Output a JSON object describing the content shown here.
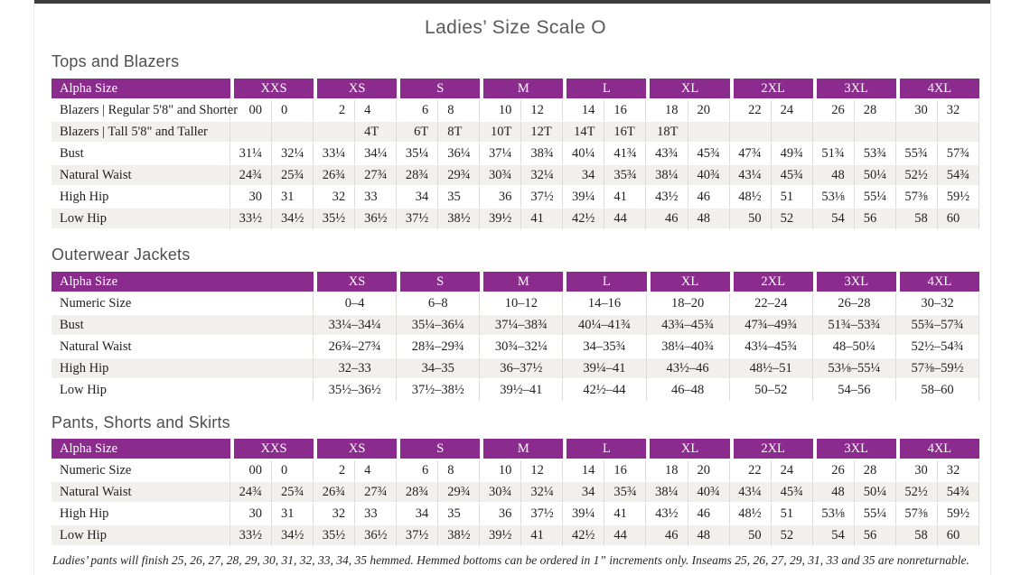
{
  "page": {
    "title": "Ladies’ Size Scale O",
    "footnote": "Ladies’ pants will finish 25, 26, 27, 28, 29, 30, 31, 32, 33, 34, 35 hemmed. Hemmed bottoms can be ordered in 1” increments only. Inseams 25, 26, 27, 29, 31, 33 and 35 are nonreturnable."
  },
  "colors": {
    "header_bg": "#8C2B8E",
    "stripe_bg": "#F2F0EC",
    "top_bar": "#3D3D3D"
  },
  "tables": [
    {
      "id": "tops-and-blazers",
      "section_title": "Tops and Blazers",
      "label_header": "Alpha Size",
      "split_columns": true,
      "sizes": [
        "XXS",
        "XS",
        "S",
        "M",
        "L",
        "XL",
        "2XL",
        "3XL",
        "4XL"
      ],
      "rows": [
        {
          "label": "Blazers | Regular 5'8\" and Shorter",
          "values": [
            [
              "00",
              "0"
            ],
            [
              "2",
              "4"
            ],
            [
              "6",
              "8"
            ],
            [
              "10",
              "12"
            ],
            [
              "14",
              "16"
            ],
            [
              "18",
              "20"
            ],
            [
              "22",
              "24"
            ],
            [
              "26",
              "28"
            ],
            [
              "30",
              "32"
            ]
          ]
        },
        {
          "label": "Blazers | Tall 5'8\" and Taller",
          "values": [
            [
              "",
              ""
            ],
            [
              "",
              "4T"
            ],
            [
              "6T",
              "8T"
            ],
            [
              "10T",
              "12T"
            ],
            [
              "14T",
              "16T"
            ],
            [
              "18T",
              ""
            ],
            [
              "",
              ""
            ],
            [
              "",
              ""
            ],
            [
              "",
              ""
            ]
          ]
        },
        {
          "label": "Bust",
          "values": [
            [
              "31¼",
              "32¼"
            ],
            [
              "33¼",
              "34¼"
            ],
            [
              "35¼",
              "36¼"
            ],
            [
              "37¼",
              "38¾"
            ],
            [
              "40¼",
              "41¾"
            ],
            [
              "43¾",
              "45¾"
            ],
            [
              "47¾",
              "49¾"
            ],
            [
              "51¾",
              "53¾"
            ],
            [
              "55¾",
              "57¾"
            ]
          ]
        },
        {
          "label": "Natural Waist",
          "values": [
            [
              "24¾",
              "25¾"
            ],
            [
              "26¾",
              "27¾"
            ],
            [
              "28¾",
              "29¾"
            ],
            [
              "30¾",
              "32¼"
            ],
            [
              "34",
              "35¾"
            ],
            [
              "38¼",
              "40¾"
            ],
            [
              "43¼",
              "45¾"
            ],
            [
              "48",
              "50¼"
            ],
            [
              "52½",
              "54¾"
            ]
          ]
        },
        {
          "label": "High Hip",
          "values": [
            [
              "30",
              "31"
            ],
            [
              "32",
              "33"
            ],
            [
              "34",
              "35"
            ],
            [
              "36",
              "37½"
            ],
            [
              "39¼",
              "41"
            ],
            [
              "43½",
              "46"
            ],
            [
              "48½",
              "51"
            ],
            [
              "53⅛",
              "55¼"
            ],
            [
              "57⅜",
              "59½"
            ]
          ]
        },
        {
          "label": "Low Hip",
          "values": [
            [
              "33½",
              "34½"
            ],
            [
              "35½",
              "36½"
            ],
            [
              "37½",
              "38½"
            ],
            [
              "39½",
              "41"
            ],
            [
              "42½",
              "44"
            ],
            [
              "46",
              "48"
            ],
            [
              "50",
              "52"
            ],
            [
              "54",
              "56"
            ],
            [
              "58",
              "60"
            ]
          ]
        }
      ]
    },
    {
      "id": "outerwear-jackets",
      "section_title": "Outerwear Jackets",
      "label_header": "Alpha Size",
      "split_columns": false,
      "sizes": [
        "XS",
        "S",
        "M",
        "L",
        "XL",
        "2XL",
        "3XL",
        "4XL"
      ],
      "rows": [
        {
          "label": "Numeric Size",
          "values": [
            "0–4",
            "6–8",
            "10–12",
            "14–16",
            "18–20",
            "22–24",
            "26–28",
            "30–32"
          ]
        },
        {
          "label": "Bust",
          "values": [
            "33¼–34¼",
            "35¼–36¼",
            "37¼–38¾",
            "40¼–41¾",
            "43¾–45¾",
            "47¾–49¾",
            "51¾–53¾",
            "55¾–57¾"
          ]
        },
        {
          "label": "Natural Waist",
          "values": [
            "26¾–27¾",
            "28¾–29¾",
            "30¾–32¼",
            "34–35¾",
            "38¼–40¾",
            "43¼–45¾",
            "48–50¼",
            "52½–54¾"
          ]
        },
        {
          "label": "High Hip",
          "values": [
            "32–33",
            "34–35",
            "36–37½",
            "39¼–41",
            "43½–46",
            "48½–51",
            "53⅛–55¼",
            "57⅜–59½"
          ]
        },
        {
          "label": "Low Hip",
          "values": [
            "35½–36½",
            "37½–38½",
            "39½–41",
            "42½–44",
            "46–48",
            "50–52",
            "54–56",
            "58–60"
          ]
        }
      ]
    },
    {
      "id": "pants-shorts-skirts",
      "section_title": "Pants, Shorts and Skirts",
      "label_header": "Alpha Size",
      "split_columns": true,
      "sizes": [
        "XXS",
        "XS",
        "S",
        "M",
        "L",
        "XL",
        "2XL",
        "3XL",
        "4XL"
      ],
      "rows": [
        {
          "label": "Numeric Size",
          "values": [
            [
              "00",
              "0"
            ],
            [
              "2",
              "4"
            ],
            [
              "6",
              "8"
            ],
            [
              "10",
              "12"
            ],
            [
              "14",
              "16"
            ],
            [
              "18",
              "20"
            ],
            [
              "22",
              "24"
            ],
            [
              "26",
              "28"
            ],
            [
              "30",
              "32"
            ]
          ]
        },
        {
          "label": "Natural Waist",
          "values": [
            [
              "24¾",
              "25¾"
            ],
            [
              "26¾",
              "27¾"
            ],
            [
              "28¾",
              "29¾"
            ],
            [
              "30¾",
              "32¼"
            ],
            [
              "34",
              "35¾"
            ],
            [
              "38¼",
              "40¾"
            ],
            [
              "43¼",
              "45¾"
            ],
            [
              "48",
              "50¼"
            ],
            [
              "52½",
              "54¾"
            ]
          ]
        },
        {
          "label": "High Hip",
          "values": [
            [
              "30",
              "31"
            ],
            [
              "32",
              "33"
            ],
            [
              "34",
              "35"
            ],
            [
              "36",
              "37½"
            ],
            [
              "39¼",
              "41"
            ],
            [
              "43½",
              "46"
            ],
            [
              "48½",
              "51"
            ],
            [
              "53⅛",
              "55¼"
            ],
            [
              "57⅜",
              "59½"
            ]
          ]
        },
        {
          "label": "Low Hip",
          "values": [
            [
              "33½",
              "34½"
            ],
            [
              "35½",
              "36½"
            ],
            [
              "37½",
              "38½"
            ],
            [
              "39½",
              "41"
            ],
            [
              "42½",
              "44"
            ],
            [
              "46",
              "48"
            ],
            [
              "50",
              "52"
            ],
            [
              "54",
              "56"
            ],
            [
              "58",
              "60"
            ]
          ]
        }
      ]
    }
  ]
}
